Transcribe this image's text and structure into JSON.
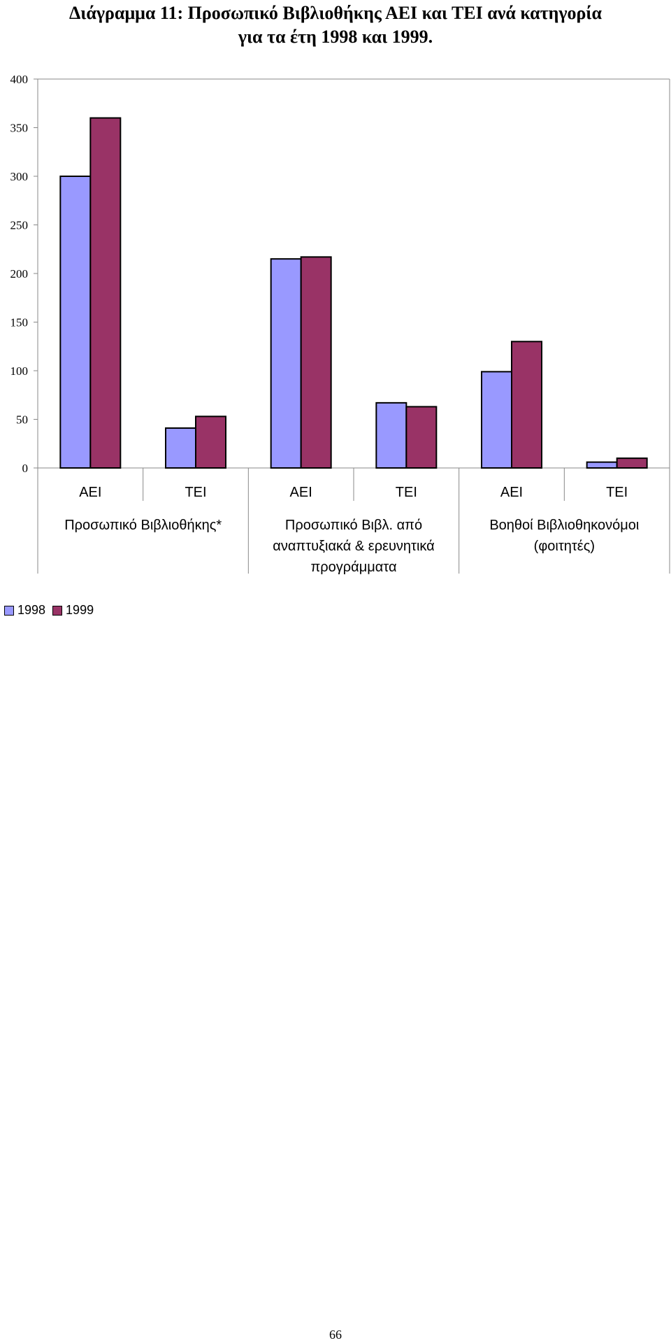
{
  "title": {
    "line1": "Διάγραμμα 11: Προσωπικό Βιβλιοθήκης ΑΕΙ και ΤΕΙ ανά κατηγορία",
    "line2": "για τα έτη 1998 και 1999."
  },
  "chart_data": {
    "type": "bar",
    "title": "Διάγραμμα 11: Προσωπικό Βιβλιοθήκης ΑΕΙ και ΤΕΙ ανά κατηγορία για τα έτη 1998 και 1999.",
    "ylim": [
      0,
      400
    ],
    "yticks": [
      0,
      50,
      100,
      150,
      200,
      250,
      300,
      350,
      400
    ],
    "categories": [
      "ΑΕΙ",
      "ΤΕΙ",
      "ΑΕΙ",
      "ΤΕΙ",
      "ΑΕΙ",
      "ΤΕΙ"
    ],
    "groups": [
      {
        "label": [
          "Προσωπικό Βιβλιοθήκης*"
        ],
        "span": [
          0,
          1
        ]
      },
      {
        "label": [
          "Προσωπικό Βιβλ. από",
          "αναπτυξιακά & ερευνητικά",
          "προγράμματα"
        ],
        "span": [
          2,
          3
        ]
      },
      {
        "label": [
          "Βοηθοί Βιβλιοθηκονόμοι",
          "(φοιτητές)"
        ],
        "span": [
          4,
          5
        ]
      }
    ],
    "series": [
      {
        "name": "1998",
        "color": "#9999FF",
        "values": [
          300,
          41,
          215,
          67,
          99,
          6
        ]
      },
      {
        "name": "1999",
        "color": "#993366",
        "values": [
          360,
          53,
          217,
          63,
          130,
          10
        ]
      }
    ],
    "legend_position": "bottom-left",
    "grid": false
  },
  "page_number": "66"
}
